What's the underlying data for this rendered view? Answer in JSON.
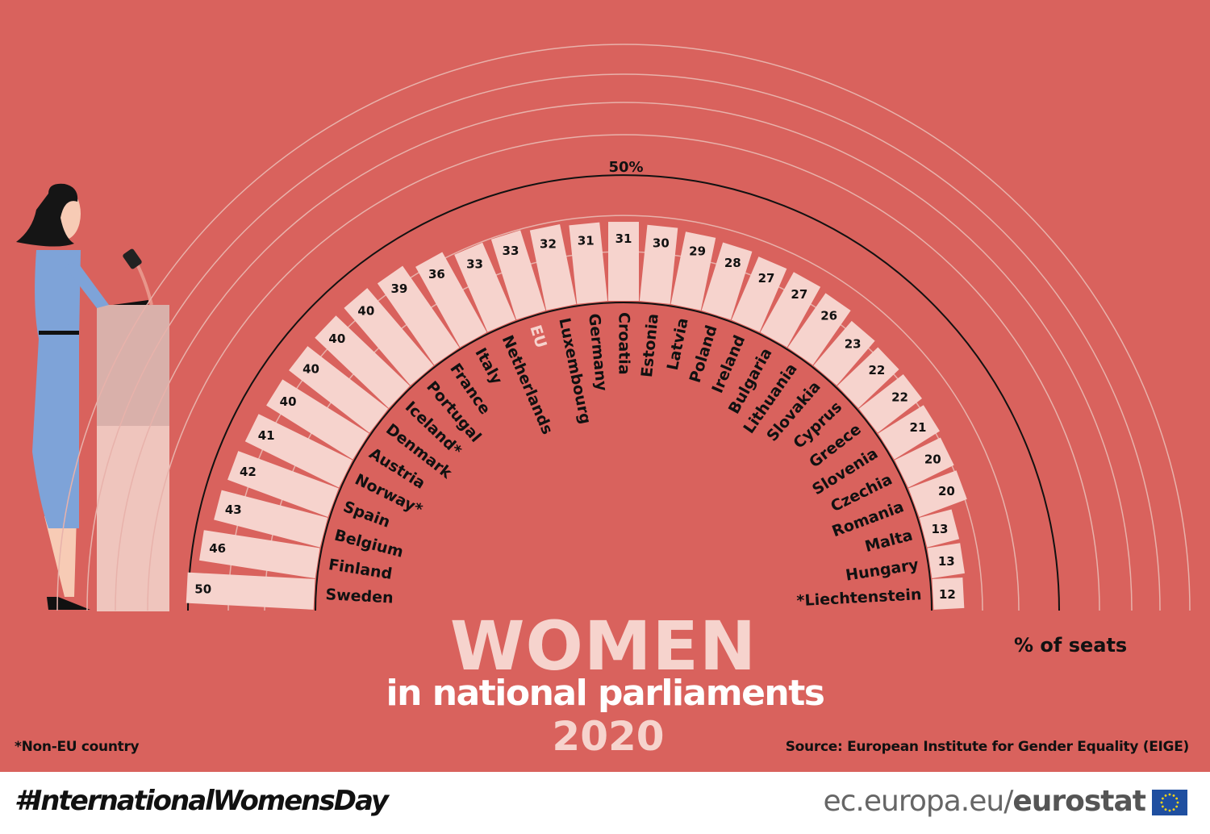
{
  "chart_data": {
    "type": "bar",
    "layout": "radial semicircle",
    "categories": [
      "Sweden",
      "Finland",
      "Belgium",
      "Spain",
      "Norway*",
      "Austria",
      "Denmark",
      "Iceland*",
      "Portugal",
      "France",
      "Italy",
      "Netherlands",
      "EU",
      "Luxembourg",
      "Germany",
      "Croatia",
      "Estonia",
      "Latvia",
      "Poland",
      "Ireland",
      "Bulgaria",
      "Lithuania",
      "Slovakia",
      "Cyprus",
      "Greece",
      "Slovenia",
      "Czechia",
      "Romania",
      "Malta",
      "Hungary",
      "*Liechtenstein"
    ],
    "values": [
      50,
      46,
      43,
      42,
      41,
      40,
      40,
      40,
      40,
      39,
      36,
      33,
      33,
      32,
      31,
      31,
      30,
      29,
      28,
      27,
      27,
      26,
      23,
      22,
      22,
      21,
      20,
      20,
      13,
      13,
      12
    ],
    "highlight_category": "EU",
    "reference_line": {
      "value": 50,
      "label": "50%"
    },
    "unit_label": "% of seats",
    "ylim": [
      0,
      50
    ]
  },
  "title": {
    "main": "WOMEN",
    "sub": "in national parliaments",
    "year": "2020"
  },
  "footnote": "*Non-EU country",
  "source": "Source: European Institute for Gender Equality (EIGE)",
  "footer": {
    "hashtag": "#InternationalWomensDay",
    "site_prefix": "ec.europa.eu/",
    "site_brand": "eurostat"
  },
  "colors": {
    "background": "#d9625d",
    "bar": "#f6d3cd",
    "highlight_text": "#f6d3cd",
    "text": "#111111"
  }
}
